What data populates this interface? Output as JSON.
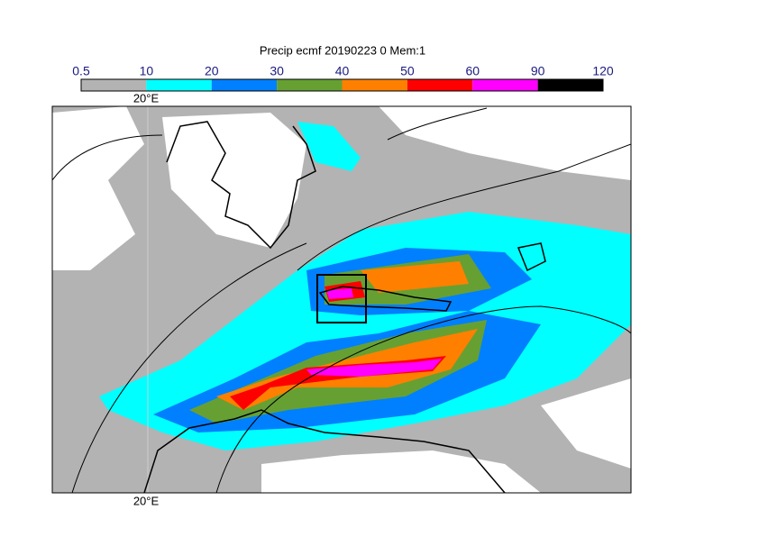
{
  "title": "Precip ecmf 20190223 0 Mem:1",
  "colorbar": {
    "ticks": [
      0.5,
      10,
      20,
      30,
      40,
      50,
      60,
      90,
      120
    ],
    "colors": [
      "#b3b3b3",
      "#00ffff",
      "#0080ff",
      "#66a033",
      "#ff8000",
      "#ff0000",
      "#ff00ff",
      "#000000"
    ]
  },
  "map": {
    "top_lon_label": "20°E",
    "bottom_lon_label": "20°E"
  }
}
